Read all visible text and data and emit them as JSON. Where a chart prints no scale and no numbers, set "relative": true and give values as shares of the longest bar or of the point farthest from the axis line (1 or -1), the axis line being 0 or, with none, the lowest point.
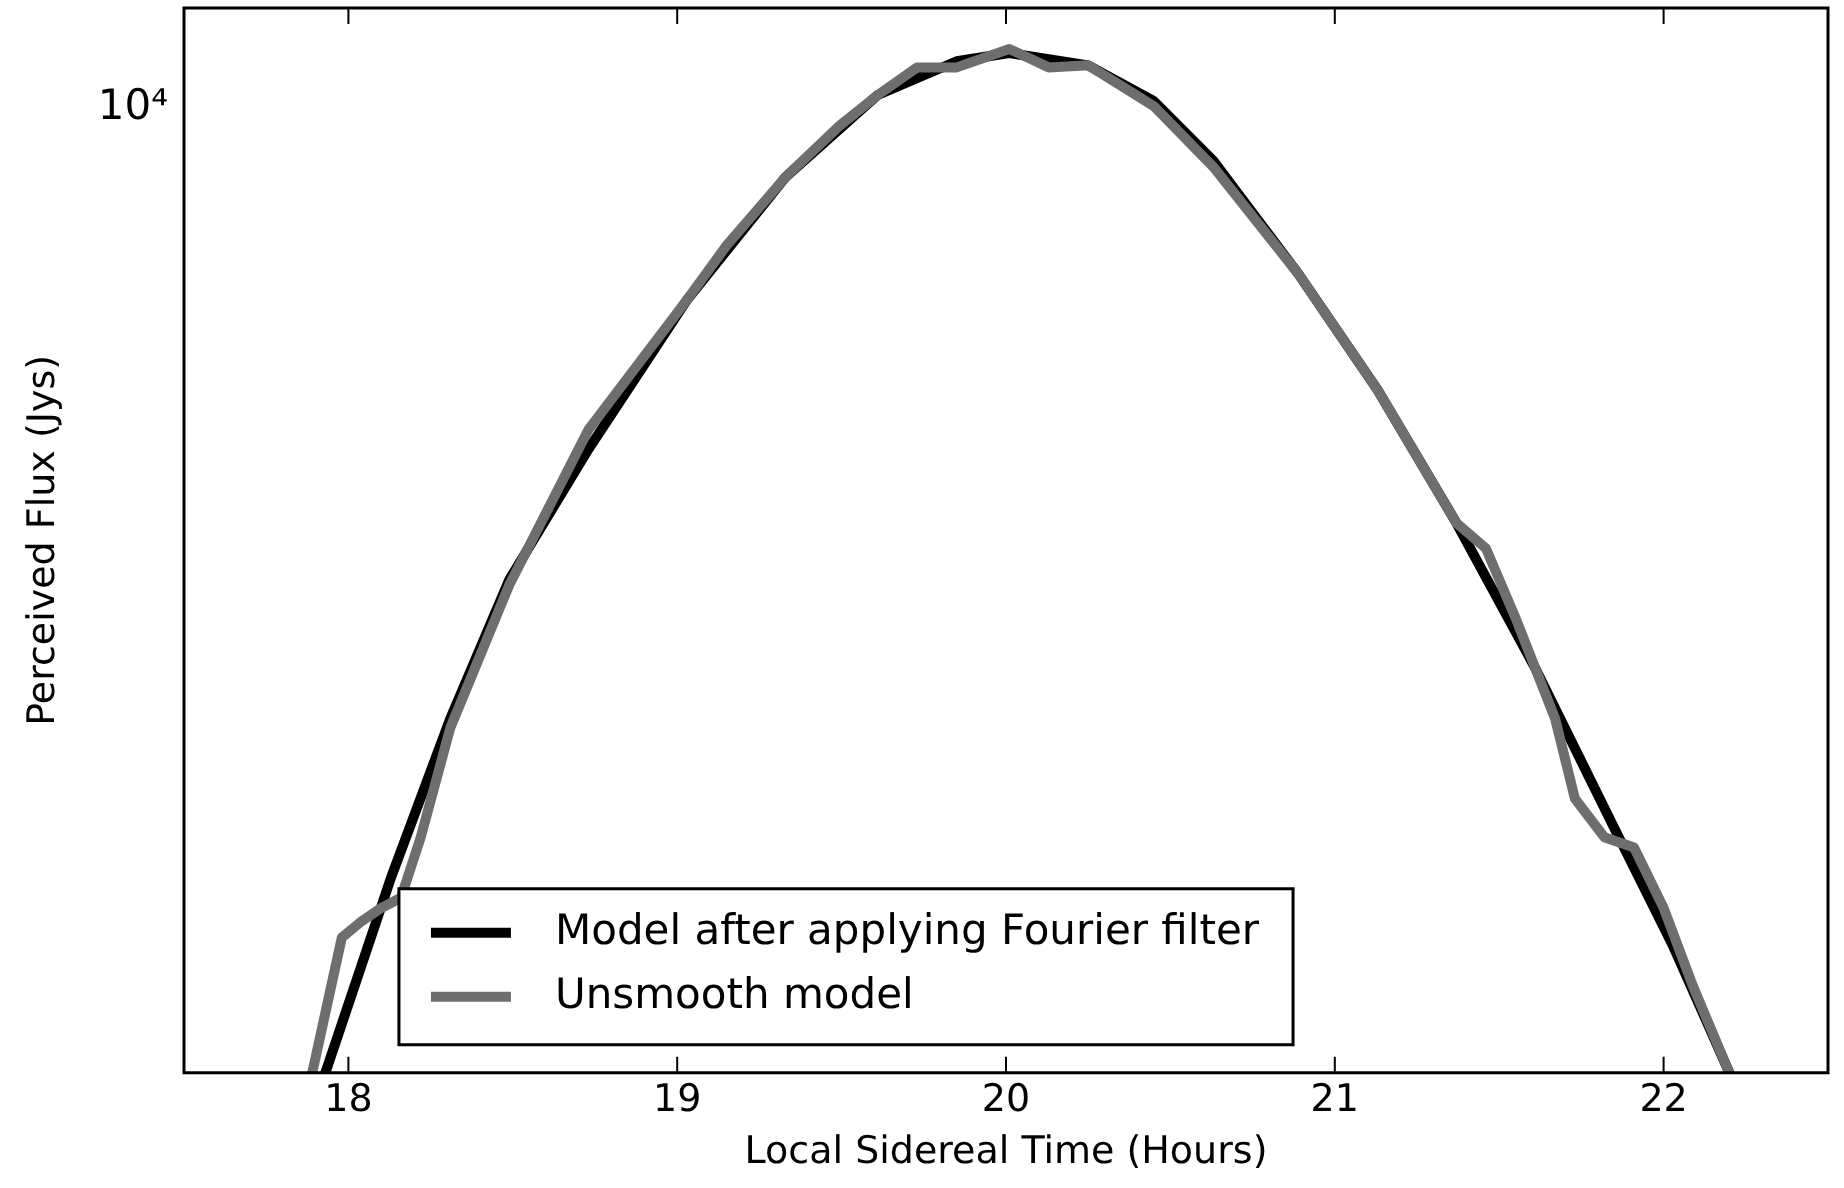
{
  "chart_data": {
    "type": "line",
    "xlabel": "Local Sidereal Time (Hours)",
    "ylabel": "Perceived Flux (Jys)",
    "relative": true,
    "annotations": [
      "10⁴"
    ],
    "grid": false,
    "legend": "bottom",
    "marker": "none",
    "line_style": "solid",
    "xlim": [
      17.5,
      22.5
    ],
    "xticks": [
      18,
      19,
      20,
      21,
      22
    ],
    "series": [
      {
        "name": "Model after applying Fourier filter",
        "color": "#000000",
        "x": [
          17.93,
          18.13,
          18.31,
          18.49,
          18.73,
          19.03,
          19.33,
          19.61,
          19.85,
          20.01,
          20.25,
          20.45,
          20.63,
          20.89,
          21.13,
          21.37,
          21.61,
          21.85,
          22.03,
          22.2
        ],
        "values": [
          0,
          0.191,
          0.346,
          0.482,
          0.609,
          0.755,
          0.875,
          0.955,
          0.988,
          0.996,
          0.984,
          0.949,
          0.891,
          0.78,
          0.667,
          0.537,
          0.395,
          0.239,
          0.123,
          0
        ]
      },
      {
        "name": "Unsmooth model",
        "color": "#6e6e6e",
        "x": [
          17.89,
          17.98,
          18.04,
          18.1,
          18.16,
          18.22,
          18.31,
          18.49,
          18.73,
          19.03,
          19.15,
          19.33,
          19.49,
          19.61,
          19.73,
          19.85,
          20.01,
          20.13,
          20.25,
          20.45,
          20.63,
          20.89,
          21.13,
          21.37,
          21.46,
          21.55,
          21.67,
          21.73,
          21.82,
          21.91,
          22.0,
          22.09,
          22.2
        ],
        "values": [
          0,
          0.132,
          0.148,
          0.161,
          0.171,
          0.23,
          0.337,
          0.477,
          0.628,
          0.755,
          0.808,
          0.875,
          0.924,
          0.955,
          0.982,
          0.982,
          1,
          0.982,
          0.984,
          0.944,
          0.885,
          0.78,
          0.667,
          0.537,
          0.512,
          0.444,
          0.346,
          0.268,
          0.23,
          0.22,
          0.161,
          0.084,
          0
        ]
      }
    ]
  }
}
